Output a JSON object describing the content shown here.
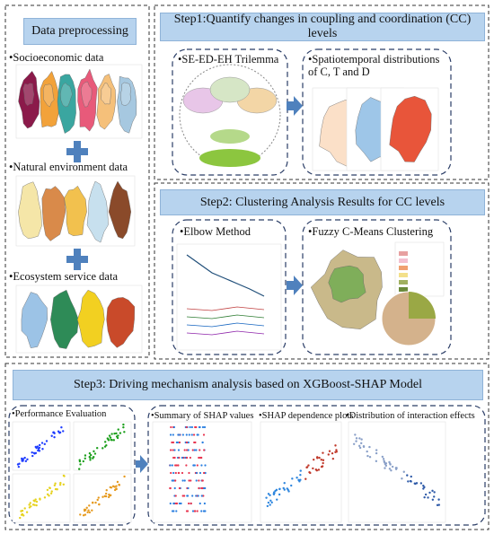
{
  "data_preprocessing": {
    "title": "Data preprocessing",
    "items": [
      "•Socioeconomic data",
      "•Natural environment data",
      "•Ecosystem service data"
    ]
  },
  "step1": {
    "title": "Step1:Quantify changes in coupling and coordination (CC) levels",
    "panels": [
      "•SE-ED-EH Trilemma",
      "•Spatiotemporal distributions of C, T and D"
    ]
  },
  "step2": {
    "title": "Step2: Clustering Analysis Results for CC levels",
    "panels": [
      "•Elbow Method",
      "•Fuzzy C-Means Clustering"
    ]
  },
  "step3": {
    "title": "Step3: Driving mechanism analysis based on XGBoost-SHAP Model",
    "panels": [
      "•Performance Evaluation",
      "•Summary of SHAP values",
      "•SHAP dependence plots",
      "•Distribution of interaction effects"
    ]
  }
}
